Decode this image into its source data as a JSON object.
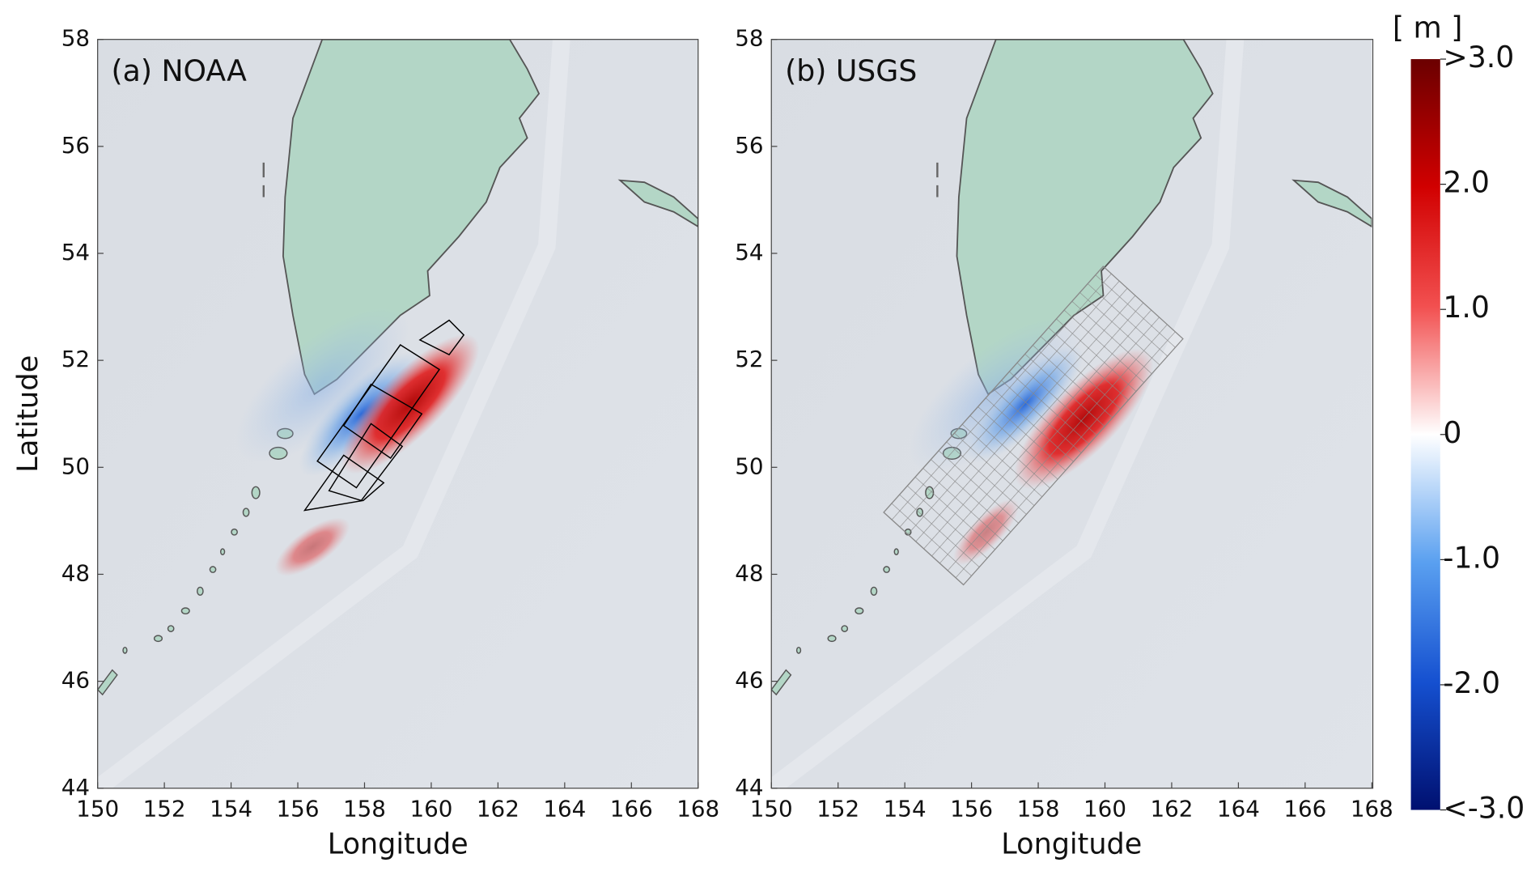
{
  "chart_data": [
    {
      "type": "map",
      "title": "(a) NOAA",
      "x_label": "Longitude",
      "y_label": "Latitude",
      "xlim": [
        150,
        168
      ],
      "ylim": [
        44,
        58
      ],
      "xticks": [
        150,
        152,
        154,
        156,
        158,
        160,
        162,
        164,
        166,
        168
      ],
      "yticks": [
        44,
        46,
        48,
        50,
        52,
        54,
        56,
        58
      ]
    },
    {
      "type": "map",
      "title": "(b) USGS",
      "x_label": "Longitude",
      "xlim": [
        150,
        168
      ],
      "ylim": [
        44,
        58
      ],
      "xticks": [
        150,
        152,
        154,
        156,
        158,
        160,
        162,
        164,
        166,
        168
      ],
      "yticks": [
        44,
        46,
        48,
        50,
        52,
        54,
        56,
        58
      ]
    }
  ],
  "colorbar": {
    "unit": "[ m ]",
    "lim": [
      -3,
      3
    ],
    "ticks": [
      {
        "value": 3,
        "label": ">3.0"
      },
      {
        "value": 2,
        "label": "2.0"
      },
      {
        "value": 1,
        "label": "1.0"
      },
      0,
      {
        "value": -1,
        "label": "-1.0"
      },
      {
        "value": -2,
        "label": "-2.0"
      },
      {
        "value": -3,
        "label": "<-3.0"
      }
    ]
  }
}
